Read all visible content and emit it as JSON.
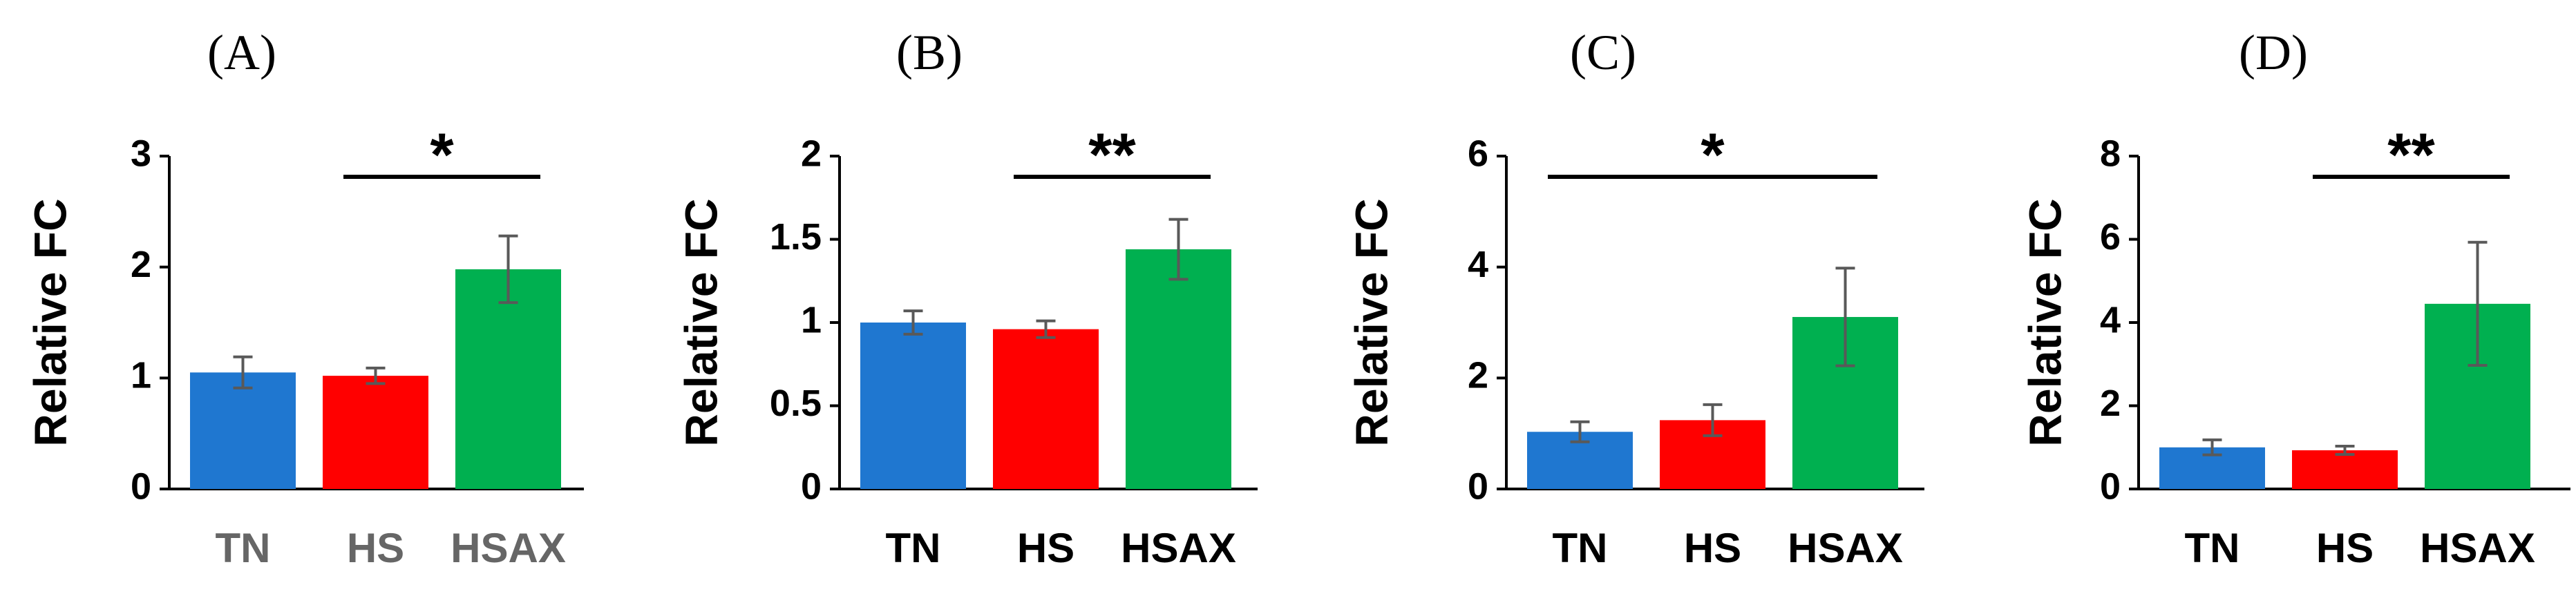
{
  "chart_data": [
    {
      "type": "bar",
      "panel_label": "(A)",
      "ylabel": "Relative FC",
      "categories": [
        "TN",
        "HS",
        "HSAX"
      ],
      "values": [
        1.05,
        1.02,
        1.98
      ],
      "errors": [
        0.14,
        0.07,
        0.3
      ],
      "ylim": [
        0,
        3
      ],
      "yticks": [
        "0",
        "1",
        "2",
        "3"
      ],
      "significance": {
        "label": "*",
        "from": "HS",
        "to": "HSAX"
      },
      "category_label_color": "#666666"
    },
    {
      "type": "bar",
      "panel_label": "(B)",
      "ylabel": "Relative FC",
      "categories": [
        "TN",
        "HS",
        "HSAX"
      ],
      "values": [
        1.0,
        0.96,
        1.44
      ],
      "errors": [
        0.07,
        0.05,
        0.18
      ],
      "ylim": [
        0,
        2
      ],
      "yticks": [
        "0",
        "0.5",
        "1",
        "1.5",
        "2"
      ],
      "significance": {
        "label": "**",
        "from": "HS",
        "to": "HSAX"
      },
      "category_label_color": "#000000"
    },
    {
      "type": "bar",
      "panel_label": "(C)",
      "ylabel": "Relative FC",
      "categories": [
        "TN",
        "HS",
        "HSAX"
      ],
      "values": [
        1.03,
        1.24,
        3.1
      ],
      "errors": [
        0.18,
        0.28,
        0.88
      ],
      "ylim": [
        0,
        6
      ],
      "yticks": [
        "0",
        "2",
        "4",
        "6"
      ],
      "significance": {
        "label": "*",
        "from": "TN",
        "to": "HSAX"
      },
      "category_label_color": "#000000"
    },
    {
      "type": "bar",
      "panel_label": "(D)",
      "ylabel": "Relative FC",
      "categories": [
        "TN",
        "HS",
        "HSAX"
      ],
      "values": [
        1.0,
        0.93,
        4.45
      ],
      "errors": [
        0.18,
        0.1,
        1.48
      ],
      "ylim": [
        0,
        8
      ],
      "yticks": [
        "0",
        "2",
        "4",
        "6",
        "8"
      ],
      "significance": {
        "label": "**",
        "from": "HS",
        "to": "HSAX"
      },
      "category_label_color": "#000000"
    }
  ],
  "colors": {
    "TN": "#1f77d0",
    "HS": "#ff0000",
    "HSAX": "#00b050",
    "error_bar": "#595959",
    "axis": "#000000"
  }
}
